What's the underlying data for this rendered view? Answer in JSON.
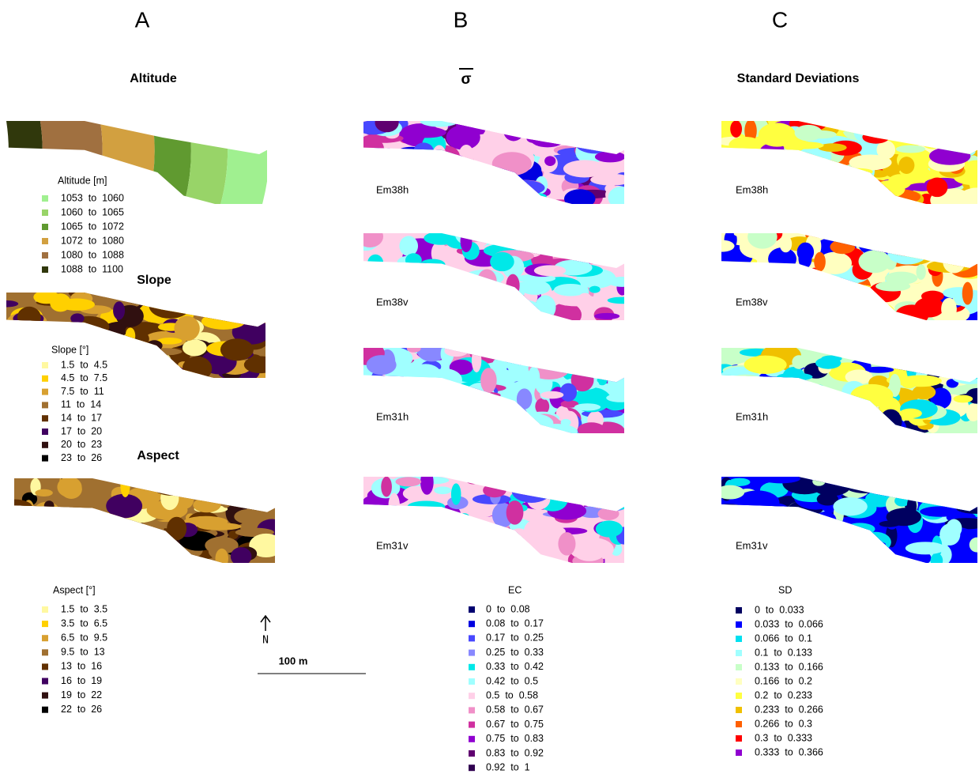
{
  "columns": [
    {
      "letter": "A",
      "title": "Altitude"
    },
    {
      "letter": "B",
      "title": "σ"
    },
    {
      "letter": "C",
      "title": "Standard Deviations"
    }
  ],
  "panel_a": {
    "altitude": {
      "legend": {
        "title": "Altitude [m]",
        "items": [
          {
            "label": "1053  to  1060",
            "color": "#a0f090"
          },
          {
            "label": "1060  to  1065",
            "color": "#98d468"
          },
          {
            "label": "1065  to  1072",
            "color": "#609a30"
          },
          {
            "label": "1072  to  1080",
            "color": "#d2a040"
          },
          {
            "label": "1080  to  1088",
            "color": "#a07040"
          },
          {
            "label": "1088  to  1100",
            "color": "#30380c"
          }
        ]
      }
    },
    "slope": {
      "title": "Slope",
      "legend": {
        "title": "Slope [°]",
        "items": [
          {
            "label": "1.5  to  4.5",
            "color": "#fff8a0"
          },
          {
            "label": "4.5  to  7.5",
            "color": "#ffd000"
          },
          {
            "label": "7.5  to  11",
            "color": "#d8a030"
          },
          {
            "label": "11  to  14",
            "color": "#a07030"
          },
          {
            "label": "14  to  17",
            "color": "#603000"
          },
          {
            "label": "17  to  20",
            "color": "#400060"
          },
          {
            "label": "20  to  23",
            "color": "#301010"
          },
          {
            "label": "23  to  26",
            "color": "#000000"
          }
        ]
      }
    },
    "aspect": {
      "title": "Aspect",
      "legend": {
        "title": "Aspect [°]",
        "items": [
          {
            "label": "1.5  to  3.5",
            "color": "#fff8a0"
          },
          {
            "label": "3.5  to  6.5",
            "color": "#ffd000"
          },
          {
            "label": "6.5  to  9.5",
            "color": "#d8a030"
          },
          {
            "label": "9.5  to  13",
            "color": "#a07030"
          },
          {
            "label": "13  to  16",
            "color": "#603000"
          },
          {
            "label": "16  to  19",
            "color": "#400060"
          },
          {
            "label": "19  to  22",
            "color": "#301010"
          },
          {
            "label": "22  to  26",
            "color": "#000000"
          }
        ]
      }
    },
    "north": "N",
    "scale_bar": "100 m"
  },
  "panel_b": {
    "maps": [
      "Em38h",
      "Em38v",
      "Em31h",
      "Em31v"
    ],
    "legend": {
      "title": "EC",
      "items": [
        {
          "label": "0  to  0.08",
          "color": "#000070"
        },
        {
          "label": "0.08  to  0.17",
          "color": "#0000e0"
        },
        {
          "label": "0.17  to  0.25",
          "color": "#4848ff"
        },
        {
          "label": "0.25  to  0.33",
          "color": "#8888ff"
        },
        {
          "label": "0.33  to  0.42",
          "color": "#00e8e8"
        },
        {
          "label": "0.42  to  0.5",
          "color": "#a0ffff"
        },
        {
          "label": "0.5  to  0.58",
          "color": "#ffd0e8"
        },
        {
          "label": "0.58  to  0.67",
          "color": "#f090c8"
        },
        {
          "label": "0.67  to  0.75",
          "color": "#d030a0"
        },
        {
          "label": "0.75  to  0.83",
          "color": "#9000d0"
        },
        {
          "label": "0.83  to  0.92",
          "color": "#600070"
        },
        {
          "label": "0.92  to  1",
          "color": "#300050"
        }
      ]
    }
  },
  "panel_c": {
    "maps": [
      "Em38h",
      "Em38v",
      "Em31h",
      "Em31v"
    ],
    "legend": {
      "title": "SD",
      "items": [
        {
          "label": "0  to  0.033",
          "color": "#000060"
        },
        {
          "label": "0.033  to  0.066",
          "color": "#0000ff"
        },
        {
          "label": "0.066  to  0.1",
          "color": "#00e0f0"
        },
        {
          "label": "0.1  to  0.133",
          "color": "#a0ffff"
        },
        {
          "label": "0.133  to  0.166",
          "color": "#c8ffc8"
        },
        {
          "label": "0.166  to  0.2",
          "color": "#ffffc0"
        },
        {
          "label": "0.2  to  0.233",
          "color": "#ffff40"
        },
        {
          "label": "0.233  to  0.266",
          "color": "#f0c000"
        },
        {
          "label": "0.266  to  0.3",
          "color": "#ff6000"
        },
        {
          "label": "0.3  to  0.333",
          "color": "#ff0000"
        },
        {
          "label": "0.333  to  0.366",
          "color": "#9000d0"
        }
      ]
    }
  }
}
